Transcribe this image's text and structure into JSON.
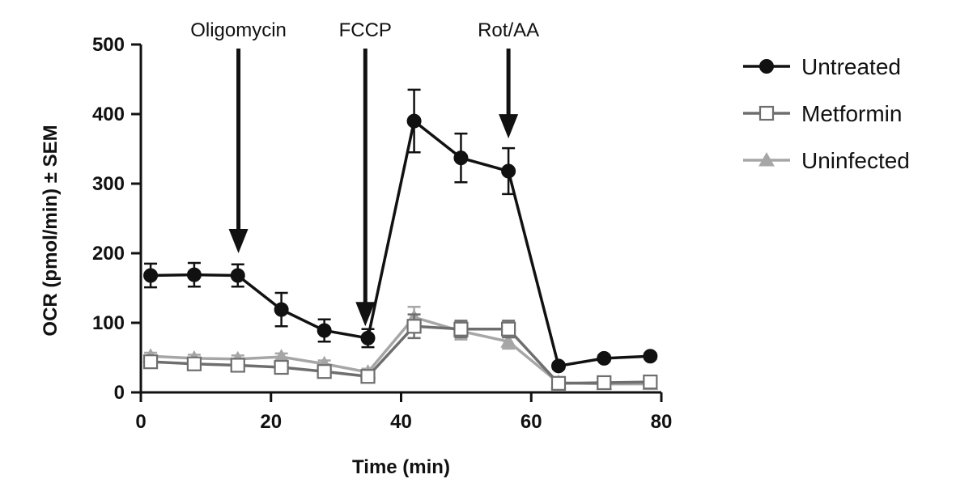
{
  "chart_data": {
    "type": "line",
    "title": "",
    "xlabel": "Time (min)",
    "ylabel": "OCR (pmol/min) ± SEM",
    "xlim": [
      0,
      80
    ],
    "ylim": [
      0,
      500
    ],
    "xticks": [
      0,
      20,
      40,
      60,
      80
    ],
    "yticks": [
      0,
      100,
      200,
      300,
      400,
      500
    ],
    "grid": false,
    "legend_position": "right",
    "annotations": [
      {
        "label": "Oligomycin",
        "x": 15,
        "arrow_tip_y": 200
      },
      {
        "label": "FCCP",
        "x": 34.5,
        "arrow_tip_y": 95
      },
      {
        "label": "Rot/AA",
        "x": 56.5,
        "arrow_tip_y": 365
      }
    ],
    "x": [
      1.5,
      8.2,
      14.9,
      21.6,
      28.2,
      34.9,
      42.0,
      49.2,
      56.5,
      64.2,
      71.2,
      78.3
    ],
    "series": [
      {
        "name": "Untreated",
        "color": "#111111",
        "marker": "filled-circle",
        "values": [
          168,
          169,
          168,
          119,
          89,
          78,
          390,
          337,
          318,
          38,
          49,
          52
        ],
        "errors": [
          17,
          17,
          16,
          24,
          16,
          13,
          45,
          35,
          33,
          4,
          4,
          4
        ]
      },
      {
        "name": "Metformin",
        "color": "#6e6e6e",
        "marker": "open-square",
        "values": [
          44,
          41,
          39,
          36,
          30,
          23,
          95,
          91,
          91,
          13,
          14,
          15
        ],
        "errors": [
          5,
          5,
          5,
          5,
          5,
          5,
          17,
          12,
          12,
          3,
          3,
          3
        ]
      },
      {
        "name": "Uninfected",
        "color": "#a6a6a6",
        "marker": "filled-triangle",
        "values": [
          52,
          49,
          48,
          51,
          41,
          29,
          108,
          88,
          73,
          14,
          12,
          12
        ],
        "errors": [
          5,
          5,
          5,
          5,
          5,
          5,
          15,
          12,
          10,
          3,
          3,
          3
        ]
      }
    ]
  }
}
